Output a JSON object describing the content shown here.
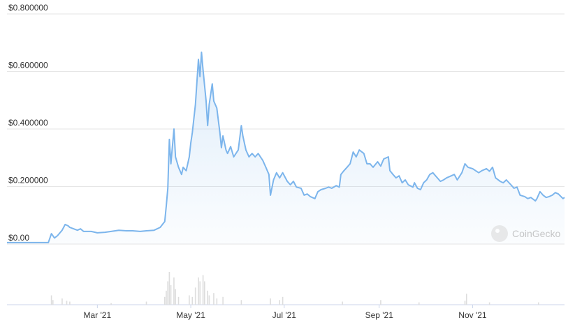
{
  "chart_data": {
    "type": "line",
    "series": [
      {
        "name": null,
        "color": "#7cb5ec",
        "x": [
          0,
          26,
          27,
          29,
          31,
          33,
          36,
          38,
          40,
          41,
          46,
          48,
          50,
          55,
          59,
          64,
          68,
          73,
          78,
          82,
          87,
          91,
          96,
          100,
          103,
          104,
          105,
          106,
          107,
          109,
          110,
          112,
          114,
          115,
          117,
          119,
          120,
          121,
          123,
          125,
          126,
          127,
          128,
          130,
          131,
          132,
          134,
          135,
          137,
          139,
          140,
          141,
          143,
          144,
          146,
          148,
          151,
          153,
          154,
          156,
          158,
          160,
          162,
          164,
          167,
          169,
          171,
          172,
          174,
          176,
          178,
          180,
          183,
          185,
          187,
          189,
          192,
          194,
          196,
          198,
          201,
          203,
          205,
          208,
          210,
          212,
          215,
          217,
          218,
          220,
          222,
          224,
          226,
          228,
          230,
          233,
          235,
          237,
          239,
          242,
          244,
          246,
          249,
          250,
          252,
          254,
          256,
          258,
          260,
          262,
          265,
          266,
          268,
          270,
          272,
          274,
          276,
          278,
          281,
          283,
          285,
          287,
          290,
          292,
          294,
          297,
          299,
          301,
          304,
          306,
          308,
          310,
          313,
          315,
          317,
          319,
          322,
          324,
          326,
          329,
          331,
          333,
          335,
          338,
          340,
          342,
          345,
          346,
          348,
          350,
          352,
          354,
          356,
          358,
          360,
          363,
          364
        ],
        "values": [
          0.005,
          0.005,
          0.005,
          0.036,
          0.021,
          0.029,
          0.048,
          0.068,
          0.063,
          0.058,
          0.048,
          0.053,
          0.044,
          0.044,
          0.039,
          0.041,
          0.044,
          0.048,
          0.046,
          0.046,
          0.044,
          0.046,
          0.048,
          0.058,
          0.078,
          0.133,
          0.194,
          0.364,
          0.279,
          0.4,
          0.303,
          0.267,
          0.242,
          0.267,
          0.255,
          0.303,
          0.352,
          0.388,
          0.485,
          0.642,
          0.582,
          0.667,
          0.606,
          0.497,
          0.412,
          0.485,
          0.557,
          0.497,
          0.473,
          0.388,
          0.335,
          0.376,
          0.327,
          0.315,
          0.339,
          0.303,
          0.327,
          0.412,
          0.376,
          0.327,
          0.303,
          0.315,
          0.303,
          0.315,
          0.291,
          0.267,
          0.242,
          0.17,
          0.223,
          0.248,
          0.23,
          0.248,
          0.218,
          0.206,
          0.218,
          0.198,
          0.194,
          0.17,
          0.174,
          0.165,
          0.158,
          0.182,
          0.189,
          0.194,
          0.198,
          0.194,
          0.203,
          0.198,
          0.242,
          0.255,
          0.267,
          0.279,
          0.32,
          0.303,
          0.327,
          0.315,
          0.279,
          0.279,
          0.267,
          0.286,
          0.271,
          0.296,
          0.303,
          0.255,
          0.242,
          0.23,
          0.237,
          0.213,
          0.223,
          0.206,
          0.198,
          0.213,
          0.194,
          0.189,
          0.213,
          0.223,
          0.242,
          0.248,
          0.23,
          0.218,
          0.223,
          0.23,
          0.237,
          0.242,
          0.223,
          0.248,
          0.279,
          0.267,
          0.262,
          0.255,
          0.248,
          0.255,
          0.262,
          0.253,
          0.267,
          0.23,
          0.218,
          0.213,
          0.223,
          0.206,
          0.194,
          0.198,
          0.17,
          0.165,
          0.158,
          0.162,
          0.15,
          0.158,
          0.182,
          0.17,
          0.162,
          0.165,
          0.17,
          0.179,
          0.174,
          0.158,
          0.162
        ]
      }
    ],
    "volume": {
      "color": "#dddddd",
      "x": [
        29,
        30,
        36,
        39,
        41,
        68,
        91,
        103,
        104,
        105,
        106,
        107,
        109,
        110,
        112,
        119,
        121,
        123,
        125,
        126,
        128,
        129,
        131,
        132,
        135,
        137,
        141,
        153,
        172,
        178,
        180,
        219,
        244,
        269,
        299,
        300,
        315,
        347
      ],
      "values": [
        12,
        6,
        8,
        5,
        4,
        2,
        4,
        10,
        18,
        30,
        42,
        25,
        35,
        20,
        10,
        12,
        10,
        22,
        35,
        30,
        38,
        30,
        18,
        12,
        15,
        8,
        10,
        6,
        8,
        6,
        10,
        4,
        6,
        3,
        5,
        14,
        3,
        3
      ]
    },
    "xlim": [
      0,
      364
    ],
    "xticks": [
      {
        "value": 59,
        "label": "Mar '21"
      },
      {
        "value": 120,
        "label": "May '21"
      },
      {
        "value": 181,
        "label": "Jul '21"
      },
      {
        "value": 243,
        "label": "Sep '21"
      },
      {
        "value": 304,
        "label": "Nov '21"
      }
    ],
    "ylim": [
      0,
      0.8
    ],
    "yticks": [
      {
        "value": 0,
        "label": "$0.00"
      },
      {
        "value": 0.2,
        "label": "$0.200000"
      },
      {
        "value": 0.4,
        "label": "$0.400000"
      },
      {
        "value": 0.6,
        "label": "$0.600000"
      },
      {
        "value": 0.8,
        "label": "$0.800000"
      }
    ],
    "grid": true,
    "watermark": "CoinGecko"
  }
}
